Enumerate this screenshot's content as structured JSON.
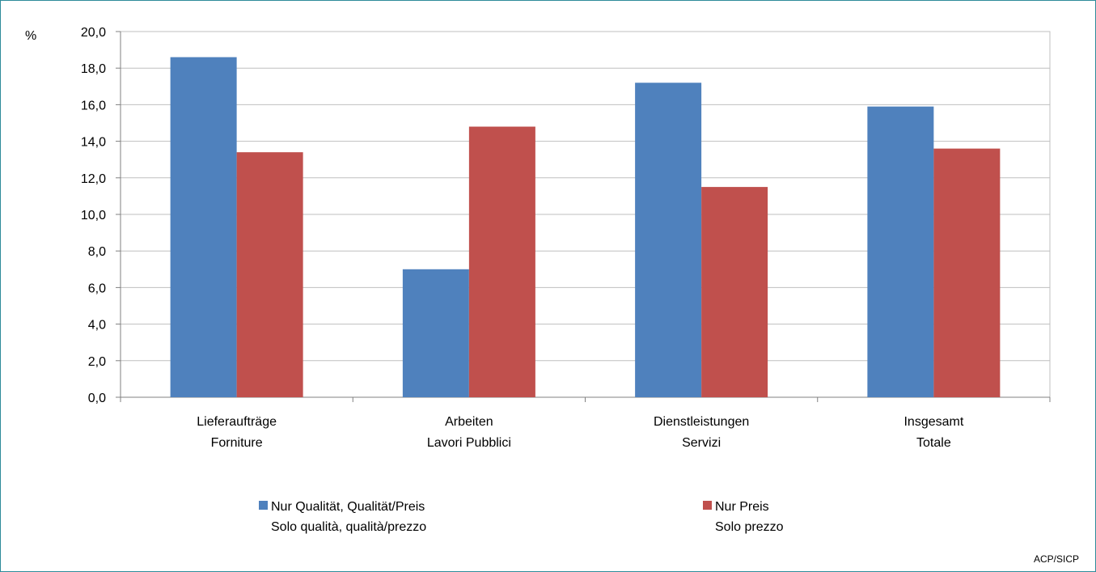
{
  "chart_data": {
    "type": "bar",
    "unit_label": "%",
    "categories": [
      [
        "Lieferaufträge",
        "Forniture"
      ],
      [
        "Arbeiten",
        "Lavori Pubblici"
      ],
      [
        "Dienstleistungen",
        "Servizi"
      ],
      [
        "Insgesamt",
        "Totale"
      ]
    ],
    "series": [
      {
        "name": [
          "Nur Qualität, Qualität/Preis",
          "Solo qualità, qualità/prezzo"
        ],
        "color": "#4f81bd",
        "values": [
          18.6,
          7.0,
          17.2,
          15.9
        ]
      },
      {
        "name": [
          "Nur Preis",
          "Solo prezzo"
        ],
        "color": "#c0504d",
        "values": [
          13.4,
          14.8,
          11.5,
          13.6
        ]
      }
    ],
    "ylim": [
      0,
      20
    ],
    "yticks": [
      "0,0",
      "2,0",
      "4,0",
      "6,0",
      "8,0",
      "10,0",
      "12,0",
      "14,0",
      "16,0",
      "18,0",
      "20,0"
    ],
    "grid": true,
    "legend_position": "bottom",
    "source": "ACP/SICP"
  }
}
